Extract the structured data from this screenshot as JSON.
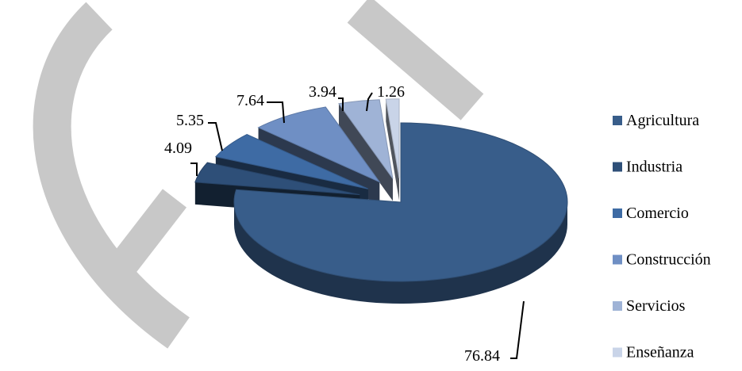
{
  "chart_data": {
    "type": "pie",
    "style": "3d-exploded",
    "categories": [
      "Agricultura",
      "Industria",
      "Comercio",
      "Construcción",
      "Servicios",
      "Enseñanza"
    ],
    "values": [
      76.84,
      4.09,
      5.35,
      7.64,
      3.94,
      1.26
    ],
    "data_labels": [
      "76.84",
      "4.09",
      "5.35",
      "7.64",
      "3.94",
      "1.26"
    ],
    "colors": [
      "#385D8A",
      "#2E4F78",
      "#3E6BA4",
      "#6F8FC4",
      "#9FB3D6",
      "#C9D4E8"
    ],
    "legend_position": "right",
    "title": ""
  },
  "watermark": {
    "color": "#c8c8c8"
  }
}
